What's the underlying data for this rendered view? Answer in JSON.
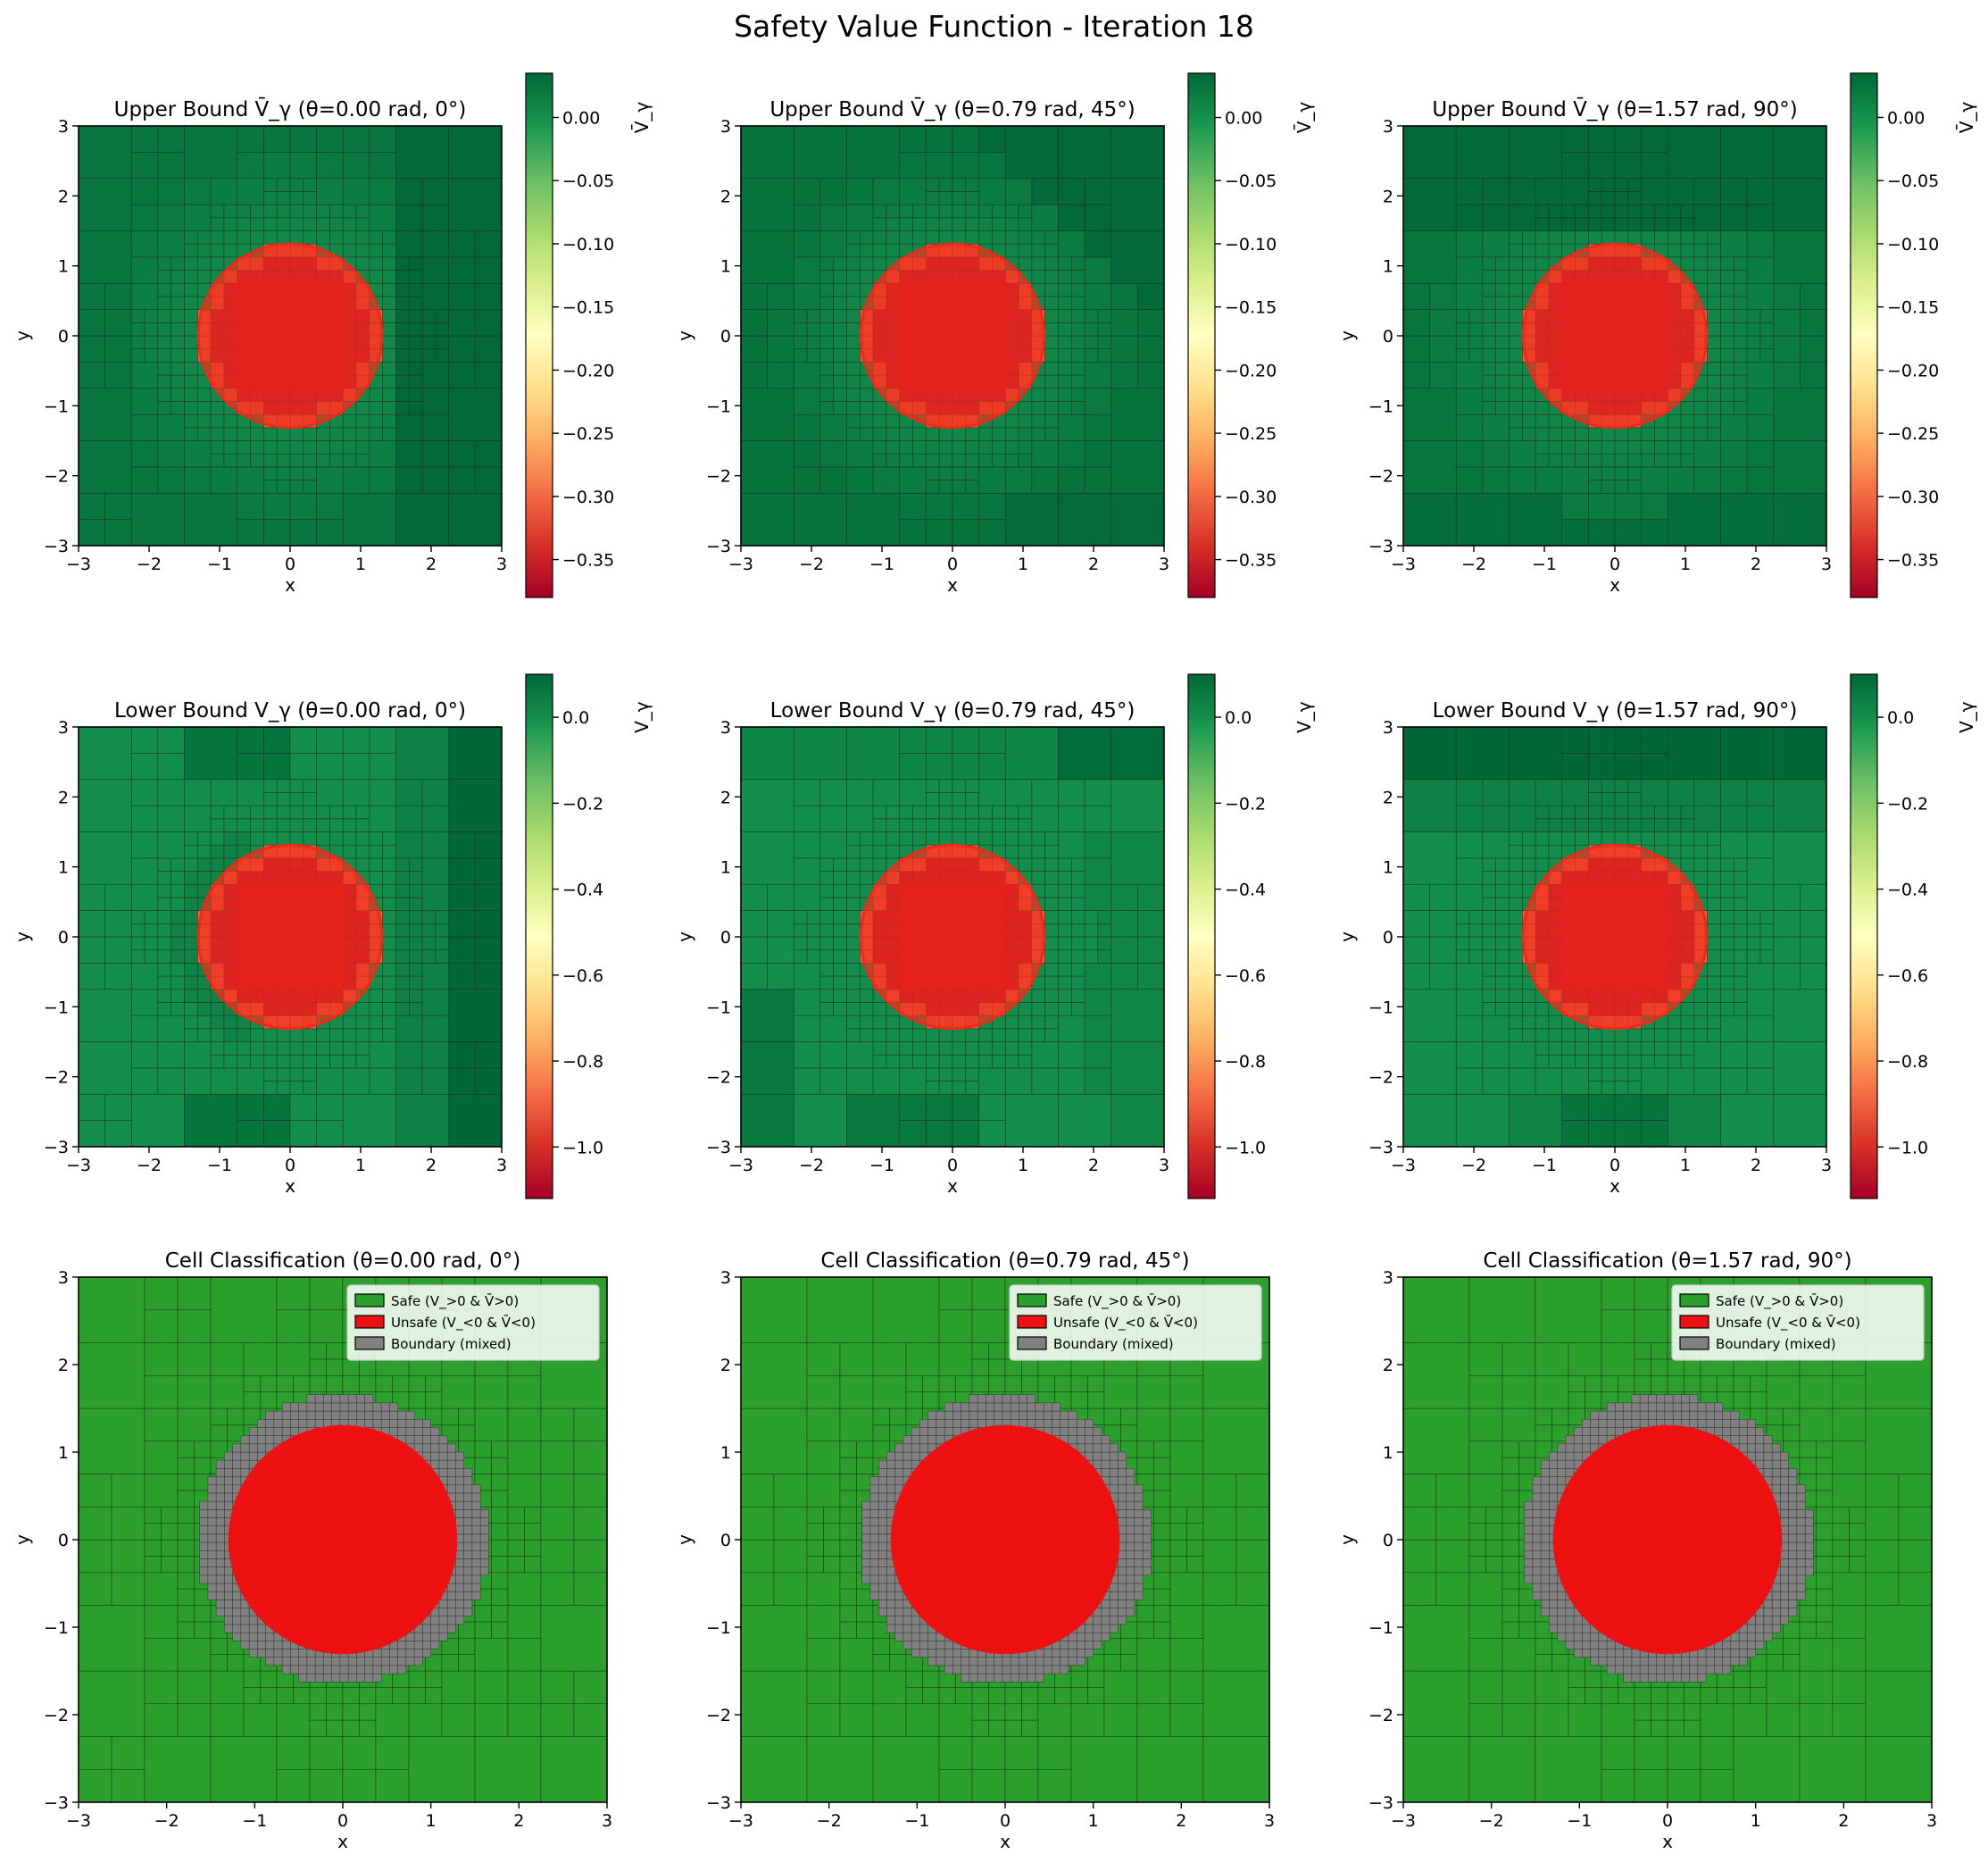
{
  "figure": {
    "title": "Safety Value Function - Iteration 18"
  },
  "colors": {
    "safe": "#2ca02c",
    "unsafe": "#ee1111",
    "boundary": "#808080",
    "obstacle": "#f03020"
  },
  "chart_data": [
    {
      "id": "ub0",
      "type": "heatmap",
      "title": "Upper Bound V̄_γ (θ=0.00 rad, 0°)",
      "xlabel": "x",
      "ylabel": "y",
      "xlim": [
        -3,
        3
      ],
      "ylim": [
        -3,
        3
      ],
      "xticks": [
        "−3",
        "−2",
        "−1",
        "0",
        "1",
        "2",
        "3"
      ],
      "yticks": [
        "−3",
        "−2",
        "−1",
        "0",
        "1",
        "2",
        "3"
      ],
      "colorbar": {
        "label": "V̄_γ",
        "range": [
          -0.38,
          0.035
        ],
        "colormap": "RdYlGn",
        "ticks": [
          "0.00",
          "−0.05",
          "−0.10",
          "−0.15",
          "−0.20",
          "−0.25",
          "−0.30",
          "−0.35"
        ],
        "tick_values": [
          0,
          -0.05,
          -0.1,
          -0.15,
          -0.2,
          -0.25,
          -0.3,
          -0.35
        ]
      },
      "obstacle": {
        "center": [
          0,
          0
        ],
        "radius": 1.3
      },
      "inner_square": [
        -0.75,
        0.75
      ]
    },
    {
      "id": "ub1",
      "type": "heatmap",
      "title": "Upper Bound V̄_γ (θ=0.79 rad, 45°)",
      "xlabel": "x",
      "ylabel": "y",
      "xlim": [
        -3,
        3
      ],
      "ylim": [
        -3,
        3
      ],
      "xticks": [
        "−3",
        "−2",
        "−1",
        "0",
        "1",
        "2",
        "3"
      ],
      "yticks": [
        "−3",
        "−2",
        "−1",
        "0",
        "1",
        "2",
        "3"
      ],
      "colorbar": {
        "label": "V̄_γ",
        "range": [
          -0.38,
          0.035
        ],
        "colormap": "RdYlGn",
        "ticks": [
          "0.00",
          "−0.05",
          "−0.10",
          "−0.15",
          "−0.20",
          "−0.25",
          "−0.30",
          "−0.35"
        ],
        "tick_values": [
          0,
          -0.05,
          -0.1,
          -0.15,
          -0.2,
          -0.25,
          -0.3,
          -0.35
        ]
      },
      "obstacle": {
        "center": [
          0,
          0
        ],
        "radius": 1.3
      },
      "inner_square": [
        -0.75,
        0.75
      ]
    },
    {
      "id": "ub2",
      "type": "heatmap",
      "title": "Upper Bound V̄_γ (θ=1.57 rad, 90°)",
      "xlabel": "x",
      "ylabel": "y",
      "xlim": [
        -3,
        3
      ],
      "ylim": [
        -3,
        3
      ],
      "xticks": [
        "−3",
        "−2",
        "−1",
        "0",
        "1",
        "2",
        "3"
      ],
      "yticks": [
        "−3",
        "−2",
        "−1",
        "0",
        "1",
        "2",
        "3"
      ],
      "colorbar": {
        "label": "V̄_γ",
        "range": [
          -0.38,
          0.035
        ],
        "colormap": "RdYlGn",
        "ticks": [
          "0.00",
          "−0.05",
          "−0.10",
          "−0.15",
          "−0.20",
          "−0.25",
          "−0.30",
          "−0.35"
        ],
        "tick_values": [
          0,
          -0.05,
          -0.1,
          -0.15,
          -0.2,
          -0.25,
          -0.3,
          -0.35
        ]
      },
      "obstacle": {
        "center": [
          0,
          0
        ],
        "radius": 1.3
      },
      "inner_square": [
        -0.75,
        0.75
      ]
    },
    {
      "id": "lb0",
      "type": "heatmap",
      "title": "Lower Bound V_γ (θ=0.00 rad, 0°)",
      "xlabel": "x",
      "ylabel": "y",
      "xlim": [
        -3,
        3
      ],
      "ylim": [
        -3,
        3
      ],
      "xticks": [
        "−3",
        "−2",
        "−1",
        "0",
        "1",
        "2",
        "3"
      ],
      "yticks": [
        "−3",
        "−2",
        "−1",
        "0",
        "1",
        "2",
        "3"
      ],
      "colorbar": {
        "label": "V_γ",
        "range": [
          -1.12,
          0.1
        ],
        "colormap": "RdYlGn",
        "ticks": [
          "0.0",
          "−0.2",
          "−0.4",
          "−0.6",
          "−0.8",
          "−1.0"
        ],
        "tick_values": [
          0,
          -0.2,
          -0.4,
          -0.6,
          -0.8,
          -1.0
        ]
      },
      "obstacle": {
        "center": [
          0,
          0
        ],
        "radius": 1.3
      },
      "inner_square": [
        -0.75,
        0.75
      ]
    },
    {
      "id": "lb1",
      "type": "heatmap",
      "title": "Lower Bound V_γ (θ=0.79 rad, 45°)",
      "xlabel": "x",
      "ylabel": "y",
      "xlim": [
        -3,
        3
      ],
      "ylim": [
        -3,
        3
      ],
      "xticks": [
        "−3",
        "−2",
        "−1",
        "0",
        "1",
        "2",
        "3"
      ],
      "yticks": [
        "−3",
        "−2",
        "−1",
        "0",
        "1",
        "2",
        "3"
      ],
      "colorbar": {
        "label": "V_γ",
        "range": [
          -1.12,
          0.1
        ],
        "colormap": "RdYlGn",
        "ticks": [
          "0.0",
          "−0.2",
          "−0.4",
          "−0.6",
          "−0.8",
          "−1.0"
        ],
        "tick_values": [
          0,
          -0.2,
          -0.4,
          -0.6,
          -0.8,
          -1.0
        ]
      },
      "obstacle": {
        "center": [
          0,
          0
        ],
        "radius": 1.3
      },
      "inner_square": [
        -0.75,
        0.75
      ]
    },
    {
      "id": "lb2",
      "type": "heatmap",
      "title": "Lower Bound V_γ (θ=1.57 rad, 90°)",
      "xlabel": "x",
      "ylabel": "y",
      "xlim": [
        -3,
        3
      ],
      "ylim": [
        -3,
        3
      ],
      "xticks": [
        "−3",
        "−2",
        "−1",
        "0",
        "1",
        "2",
        "3"
      ],
      "yticks": [
        "−3",
        "−2",
        "−1",
        "0",
        "1",
        "2",
        "3"
      ],
      "colorbar": {
        "label": "V_γ",
        "range": [
          -1.12,
          0.1
        ],
        "colormap": "RdYlGn",
        "ticks": [
          "0.0",
          "−0.2",
          "−0.4",
          "−0.6",
          "−0.8",
          "−1.0"
        ],
        "tick_values": [
          0,
          -0.2,
          -0.4,
          -0.6,
          -0.8,
          -1.0
        ]
      },
      "obstacle": {
        "center": [
          0,
          0
        ],
        "radius": 1.3
      },
      "inner_square": [
        -0.75,
        0.75
      ]
    },
    {
      "id": "cc0",
      "type": "heatmap",
      "title": "Cell Classification (θ=0.00 rad, 0°)",
      "xlabel": "x",
      "ylabel": "y",
      "xlim": [
        -3,
        3
      ],
      "ylim": [
        -3,
        3
      ],
      "xticks": [
        "−3",
        "−2",
        "−1",
        "0",
        "1",
        "2",
        "3"
      ],
      "yticks": [
        "−3",
        "−2",
        "−1",
        "0",
        "1",
        "2",
        "3"
      ],
      "unsafe_radius": 1.3,
      "boundary_radius": 1.65,
      "legend": {
        "placement": "upper right",
        "entries": [
          "Safe (V_>0 & V̄>0)",
          "Unsafe (V_<0 & V̄<0)",
          "Boundary (mixed)"
        ]
      }
    },
    {
      "id": "cc1",
      "type": "heatmap",
      "title": "Cell Classification (θ=0.79 rad, 45°)",
      "xlabel": "x",
      "ylabel": "y",
      "xlim": [
        -3,
        3
      ],
      "ylim": [
        -3,
        3
      ],
      "xticks": [
        "−3",
        "−2",
        "−1",
        "0",
        "1",
        "2",
        "3"
      ],
      "yticks": [
        "−3",
        "−2",
        "−1",
        "0",
        "1",
        "2",
        "3"
      ],
      "unsafe_radius": 1.3,
      "boundary_radius": 1.65,
      "legend": {
        "placement": "upper right",
        "entries": [
          "Safe (V_>0 & V̄>0)",
          "Unsafe (V_<0 & V̄<0)",
          "Boundary (mixed)"
        ]
      }
    },
    {
      "id": "cc2",
      "type": "heatmap",
      "title": "Cell Classification (θ=1.57 rad, 90°)",
      "xlabel": "x",
      "ylabel": "y",
      "xlim": [
        -3,
        3
      ],
      "ylim": [
        -3,
        3
      ],
      "xticks": [
        "−3",
        "−2",
        "−1",
        "0",
        "1",
        "2",
        "3"
      ],
      "yticks": [
        "−3",
        "−2",
        "−1",
        "0",
        "1",
        "2",
        "3"
      ],
      "unsafe_radius": 1.3,
      "boundary_radius": 1.65,
      "legend": {
        "placement": "upper right",
        "entries": [
          "Safe (V_>0 & V̄>0)",
          "Unsafe (V_<0 & V̄<0)",
          "Boundary (mixed)"
        ]
      }
    }
  ]
}
